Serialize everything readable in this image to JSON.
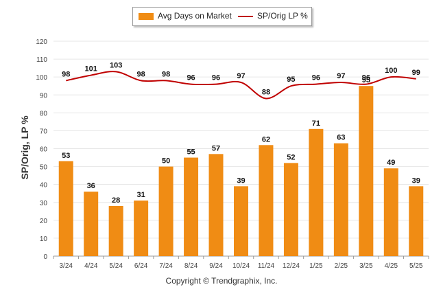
{
  "legend": {
    "bar_label": "Avg Days on Market",
    "line_label": "SP/Orig LP %"
  },
  "copyright": "Copyright © Trendgraphix, Inc.",
  "chart_data": {
    "type": "bar",
    "ylabel": "SP/Orig, LP %",
    "xlabel": "",
    "ylim": [
      0,
      120
    ],
    "yticks": [
      0,
      10,
      20,
      30,
      40,
      50,
      60,
      70,
      80,
      90,
      100,
      110,
      120
    ],
    "grid": true,
    "legend_position": "top-center",
    "categories": [
      "3/24",
      "4/24",
      "5/24",
      "6/24",
      "7/24",
      "8/24",
      "9/24",
      "10/24",
      "11/24",
      "12/24",
      "1/25",
      "2/25",
      "3/25",
      "4/25",
      "5/25"
    ],
    "series": [
      {
        "name": "Avg Days on Market",
        "type": "bar",
        "color": "#F08C14",
        "values": [
          53,
          36,
          28,
          31,
          50,
          55,
          57,
          39,
          62,
          52,
          71,
          63,
          95,
          49,
          39
        ]
      },
      {
        "name": "SP/Orig LP %",
        "type": "line",
        "color": "#C00000",
        "values": [
          98,
          101,
          103,
          98,
          98,
          96,
          96,
          97,
          88,
          95,
          96,
          97,
          96,
          100,
          99
        ]
      }
    ]
  }
}
